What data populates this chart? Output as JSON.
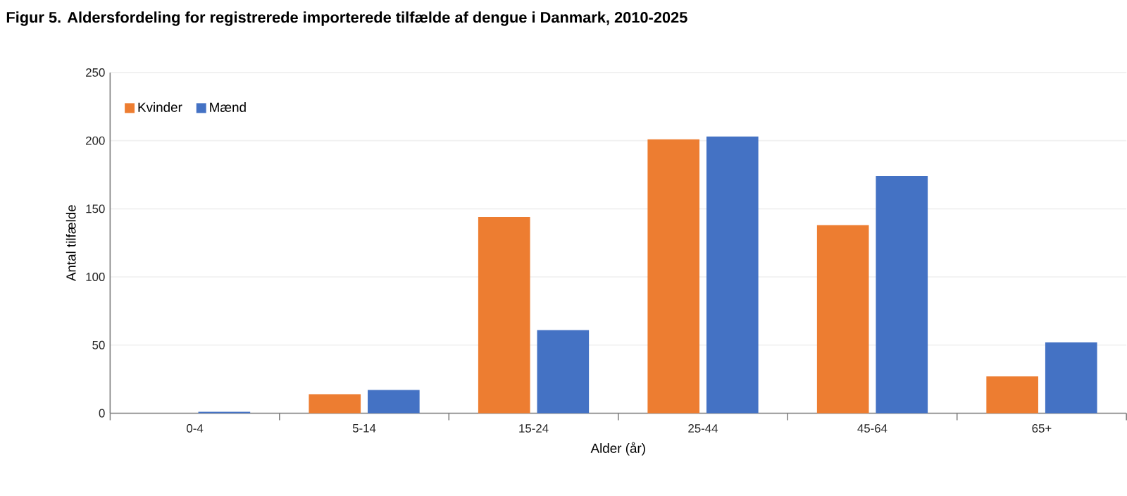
{
  "chart_data": {
    "type": "bar",
    "title": "Figur 5. Aldersfordeling for registrerede  importerede tilfælde af dengue i Danmark, 2010-2025",
    "xlabel": "Alder (år)",
    "ylabel": "Antal tilfælde",
    "categories": [
      "0-4",
      "5-14",
      "15-24",
      "25-44",
      "45-64",
      "65+"
    ],
    "series": [
      {
        "name": "Kvinder",
        "color": "#ed7d31",
        "values": [
          0,
          14,
          144,
          201,
          138,
          27
        ]
      },
      {
        "name": "Mænd",
        "color": "#4472c4",
        "values": [
          1,
          17,
          61,
          203,
          174,
          52
        ]
      }
    ],
    "ylim": [
      0,
      250
    ],
    "yticks": [
      0,
      50,
      100,
      150,
      200,
      250
    ],
    "grid": "y",
    "legend": "top left"
  }
}
